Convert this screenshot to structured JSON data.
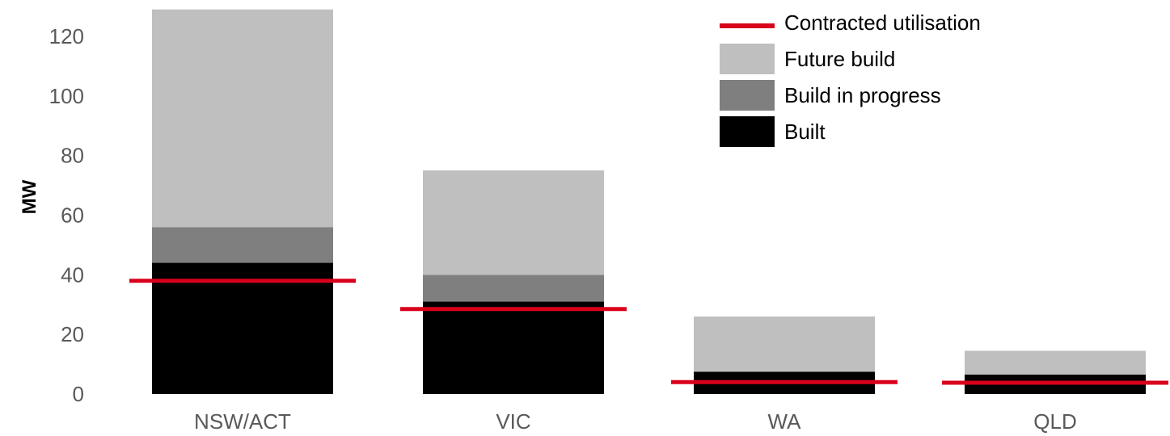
{
  "chart_data": {
    "type": "bar",
    "stacked": true,
    "title": "",
    "xlabel": "",
    "ylabel": "MW",
    "ylim": [
      0,
      130
    ],
    "yticks": [
      0,
      20,
      40,
      60,
      80,
      100,
      120
    ],
    "categories": [
      "NSW/ACT",
      "VIC",
      "WA",
      "QLD"
    ],
    "series": [
      {
        "name": "Built",
        "values": [
          44,
          31,
          7.5,
          6.5
        ],
        "color": "#000000"
      },
      {
        "name": "Build in progress",
        "values": [
          12,
          9,
          0,
          0
        ],
        "color": "#7f7f7f"
      },
      {
        "name": "Future build",
        "values": [
          73,
          35,
          18.5,
          8
        ],
        "color": "#bfbfbf"
      }
    ],
    "lines": [
      {
        "name": "Contracted utilisation",
        "values": [
          38,
          28.5,
          4,
          3.8
        ],
        "color": "#d9001b"
      }
    ],
    "legend": {
      "position": "top-right",
      "entries": [
        "Contracted utilisation",
        "Future build",
        "Build in progress",
        "Built"
      ]
    },
    "grid": false
  }
}
